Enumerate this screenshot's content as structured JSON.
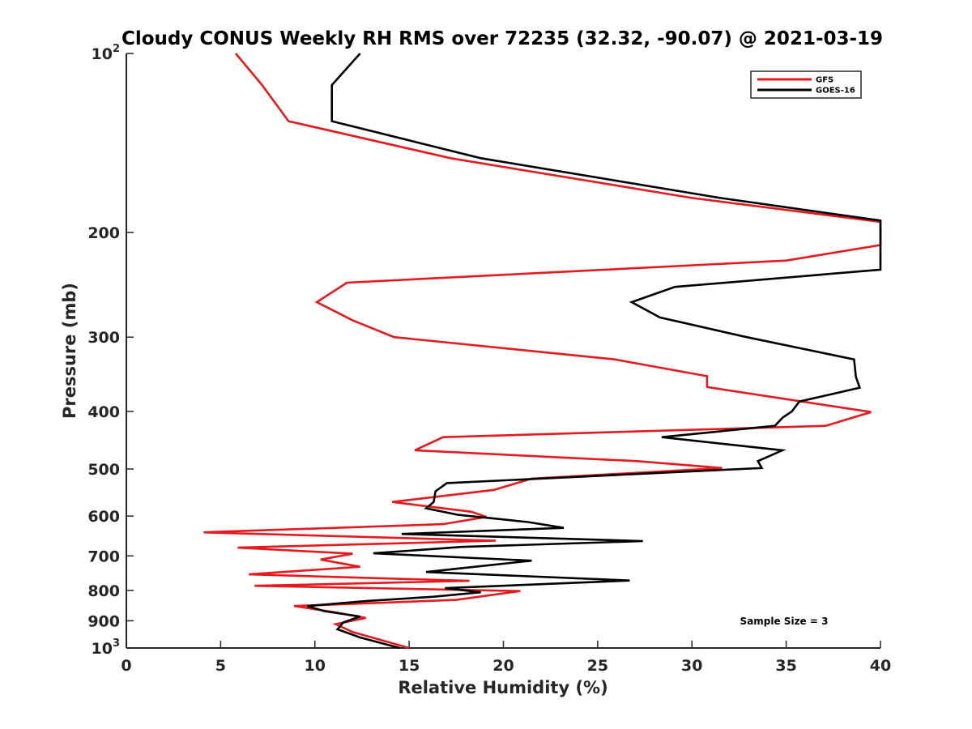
{
  "chart_data": {
    "type": "line",
    "title": "Cloudy CONUS Weekly RH RMS over 72235 (32.32, -90.07) @ 2021-03-19",
    "xlabel": "Relative Humidity (%)",
    "ylabel": "Pressure (mb)",
    "xlim": [
      0,
      40
    ],
    "ylim": [
      100,
      1000
    ],
    "yscale": "log",
    "y_reversed": true,
    "xticks": [
      "0",
      "5",
      "10",
      "15",
      "20",
      "25",
      "30",
      "35",
      "40"
    ],
    "yticks": [
      {
        "value": 100,
        "base": "10",
        "exp": "2"
      },
      {
        "value": 200,
        "label": "200"
      },
      {
        "value": 300,
        "label": "300"
      },
      {
        "value": 400,
        "label": "400"
      },
      {
        "value": 500,
        "label": "500"
      },
      {
        "value": 600,
        "label": "600"
      },
      {
        "value": 700,
        "label": "700"
      },
      {
        "value": 800,
        "label": "800"
      },
      {
        "value": 900,
        "label": "900"
      },
      {
        "value": 1000,
        "base": "10",
        "exp": "3"
      }
    ],
    "legend_position": "top-right",
    "annotation": "Sample Size = 3",
    "series": [
      {
        "name": "GFS",
        "color": "#e41a1c",
        "points": [
          [
            5.8,
            100
          ],
          [
            7.2,
            113
          ],
          [
            8.6,
            130
          ],
          [
            17.2,
            150
          ],
          [
            30,
            175
          ],
          [
            40,
            192
          ],
          [
            40,
            210
          ],
          [
            35,
            223
          ],
          [
            11.7,
            243
          ],
          [
            10.1,
            262
          ],
          [
            12,
            281
          ],
          [
            14.2,
            300
          ],
          [
            25.9,
            327
          ],
          [
            30.8,
            349
          ],
          [
            30.8,
            364
          ],
          [
            39.5,
            401
          ],
          [
            37.1,
            423
          ],
          [
            16.8,
            442
          ],
          [
            15.3,
            465
          ],
          [
            27.1,
            485
          ],
          [
            31.6,
            498
          ],
          [
            21.5,
            519
          ],
          [
            19.5,
            542
          ],
          [
            14.1,
            568
          ],
          [
            18.3,
            590
          ],
          [
            19.1,
            602
          ],
          [
            16.8,
            619
          ],
          [
            4.1,
            639
          ],
          [
            19.6,
            660
          ],
          [
            5.9,
            678
          ],
          [
            12,
            694
          ],
          [
            10.3,
            710
          ],
          [
            12.4,
            730
          ],
          [
            6.5,
            752
          ],
          [
            18.2,
            771
          ],
          [
            6.8,
            786
          ],
          [
            20.9,
            802
          ],
          [
            17.5,
            830
          ],
          [
            8.9,
            850
          ],
          [
            11,
            870
          ],
          [
            12.7,
            890
          ],
          [
            11.1,
            912
          ],
          [
            12,
            940
          ],
          [
            15,
            1000
          ]
        ]
      },
      {
        "name": "GOES-16",
        "color": "#000000",
        "points": [
          [
            12.4,
            100
          ],
          [
            10.9,
            113
          ],
          [
            10.9,
            130
          ],
          [
            18.8,
            150
          ],
          [
            31.5,
            175
          ],
          [
            40,
            191
          ],
          [
            40,
            231
          ],
          [
            29.1,
            247
          ],
          [
            26.8,
            262
          ],
          [
            28.3,
            278
          ],
          [
            32.9,
            300
          ],
          [
            38.6,
            327
          ],
          [
            38.7,
            350
          ],
          [
            38.9,
            365
          ],
          [
            35.7,
            385
          ],
          [
            35.3,
            400
          ],
          [
            34.8,
            410
          ],
          [
            34.4,
            423
          ],
          [
            28.4,
            442
          ],
          [
            34.8,
            465
          ],
          [
            33.5,
            485
          ],
          [
            33.7,
            498
          ],
          [
            17,
            528
          ],
          [
            16.4,
            545
          ],
          [
            16.3,
            568
          ],
          [
            15.9,
            582
          ],
          [
            17.6,
            597
          ],
          [
            21.3,
            614
          ],
          [
            23.2,
            628
          ],
          [
            14.6,
            643
          ],
          [
            27.4,
            661
          ],
          [
            17.8,
            676
          ],
          [
            13.1,
            693
          ],
          [
            21.5,
            713
          ],
          [
            19.2,
            726
          ],
          [
            15.9,
            745
          ],
          [
            26.7,
            770
          ],
          [
            16.9,
            793
          ],
          [
            18.8,
            806
          ],
          [
            16.3,
            820
          ],
          [
            12.7,
            834
          ],
          [
            9.6,
            850
          ],
          [
            10.5,
            867
          ],
          [
            12.4,
            885
          ],
          [
            11.5,
            906
          ],
          [
            11.2,
            930
          ],
          [
            12.4,
            960
          ],
          [
            14.5,
            1000
          ]
        ]
      }
    ]
  }
}
